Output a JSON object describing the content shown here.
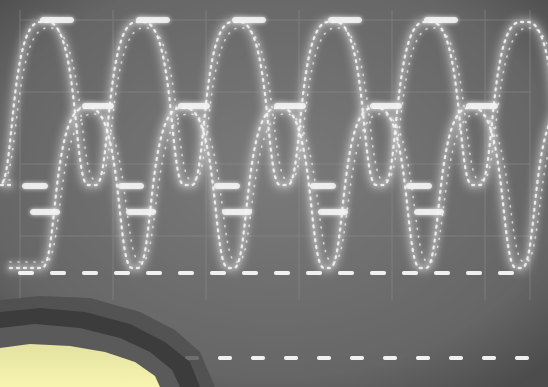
{
  "scene": {
    "subject": "oscilloscope-display-photo",
    "trace_count": 2,
    "cycles_visible": 5,
    "colors": {
      "screen": "#6e6e6e",
      "screen_dark": "#4a4a4a",
      "graticule": "#8a8a8a",
      "trace": "#f4f4f4",
      "trace_glow": "#ffffff",
      "bezel_yellow": "#f1ef9c",
      "bezel_dark": "#404040"
    }
  }
}
